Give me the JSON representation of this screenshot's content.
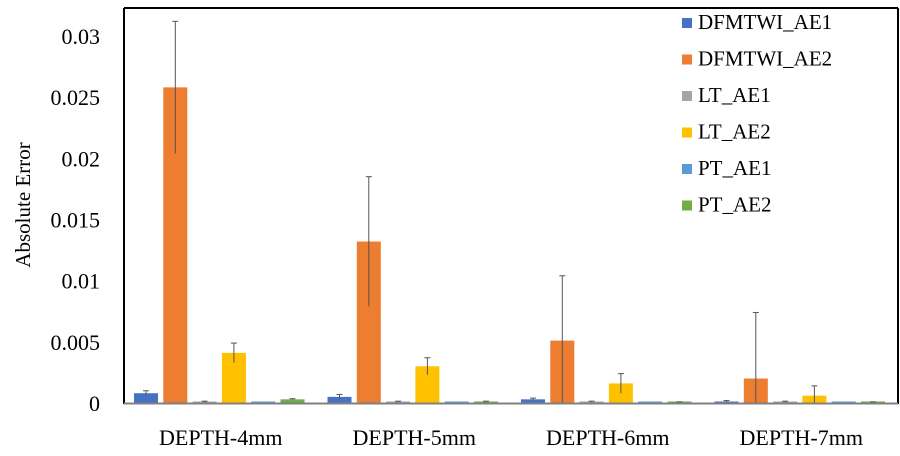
{
  "chart_data": {
    "type": "bar",
    "title": "",
    "xlabel": "",
    "ylabel": "Absolute Error",
    "ylim": [
      0,
      0.03
    ],
    "yticks": [
      "0",
      "0.005",
      "0.01",
      "0.015",
      "0.02",
      "0.025",
      "0.03"
    ],
    "categories": [
      "DEPTH-4mm",
      "DEPTH-5mm",
      "DEPTH-6mm",
      "DEPTH-7mm"
    ],
    "legend_position": "top-right",
    "series": [
      {
        "name": "DFMTWI_AE1",
        "color": "#4472C4",
        "values": [
          0.0008,
          0.0005,
          0.0003,
          0.0001
        ],
        "errors": [
          0.0002,
          0.0002,
          0.0001,
          0.0001
        ]
      },
      {
        "name": "DFMTWI_AE2",
        "color": "#ED7D31",
        "values": [
          0.0258,
          0.0132,
          0.0051,
          0.002
        ],
        "errors": [
          0.0054,
          0.0053,
          0.0053,
          0.0054
        ]
      },
      {
        "name": "LT_AE1",
        "color": "#A5A5A5",
        "values": [
          0.0001,
          0.0001,
          0.0001,
          0.0001
        ],
        "errors": [
          5e-05,
          5e-05,
          5e-05,
          5e-05
        ]
      },
      {
        "name": "LT_AE2",
        "color": "#FFC000",
        "values": [
          0.0041,
          0.003,
          0.0016,
          0.0006
        ],
        "errors": [
          0.0008,
          0.0007,
          0.0008,
          0.0008
        ]
      },
      {
        "name": "PT_AE1",
        "color": "#5B9BD5",
        "values": [
          0,
          0,
          0,
          0
        ],
        "errors": [
          0,
          0,
          0,
          0
        ]
      },
      {
        "name": "PT_AE2",
        "color": "#70AD47",
        "values": [
          0.0003,
          0.0001,
          5e-05,
          5e-05
        ],
        "errors": [
          5e-05,
          5e-05,
          5e-05,
          5e-05
        ]
      }
    ]
  }
}
